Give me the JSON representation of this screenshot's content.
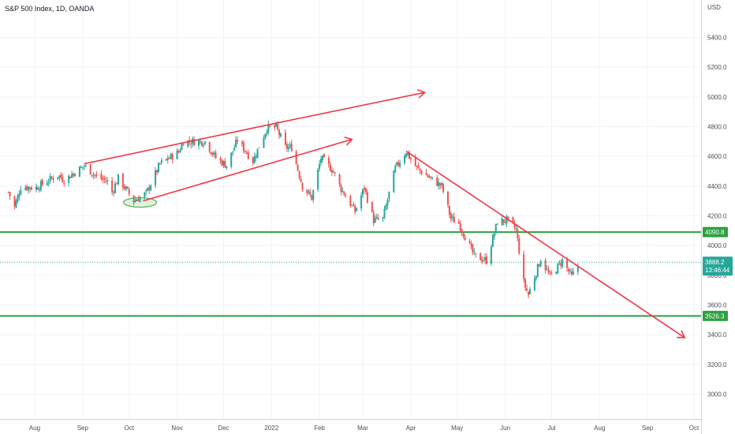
{
  "chart_data": {
    "type": "candlestick",
    "title": "S&P 500 Index, 1D, OANDA",
    "currency": "USD",
    "y_ticks": [
      3000,
      3200,
      3400,
      3600,
      3800,
      4000,
      4200,
      4400,
      4600,
      4800,
      5000,
      5200,
      5400
    ],
    "ylim": [
      2920,
      5600
    ],
    "x_ticks": [
      "Aug",
      "Sep",
      "Oct",
      "Nov",
      "Dec",
      "2022",
      "Feb",
      "Mar",
      "Apr",
      "May",
      "Jun",
      "Jul",
      "Aug",
      "Sep",
      "Oct"
    ],
    "grid": true,
    "up_color": "#26a69a",
    "down_color": "#ef5350",
    "price_path": [
      [
        "2021-07-15",
        4360
      ],
      [
        "2021-07-19",
        4260
      ],
      [
        "2021-07-23",
        4395
      ],
      [
        "2021-08-02",
        4390
      ],
      [
        "2021-08-16",
        4475
      ],
      [
        "2021-08-20",
        4440
      ],
      [
        "2021-09-02",
        4537
      ],
      [
        "2021-09-10",
        4465
      ],
      [
        "2021-09-17",
        4430
      ],
      [
        "2021-09-20",
        4360
      ],
      [
        "2021-09-24",
        4455
      ],
      [
        "2021-10-04",
        4300
      ],
      [
        "2021-10-12",
        4350
      ],
      [
        "2021-10-21",
        4550
      ],
      [
        "2021-11-02",
        4630
      ],
      [
        "2021-11-05",
        4700
      ],
      [
        "2021-11-19",
        4700
      ],
      [
        "2021-11-26",
        4590
      ],
      [
        "2021-11-30",
        4560
      ],
      [
        "2021-12-03",
        4540
      ],
      [
        "2021-12-10",
        4710
      ],
      [
        "2021-12-20",
        4570
      ],
      [
        "2021-12-29",
        4790
      ],
      [
        "2022-01-04",
        4795
      ],
      [
        "2022-01-10",
        4660
      ],
      [
        "2022-01-14",
        4660
      ],
      [
        "2022-01-21",
        4400
      ],
      [
        "2022-01-27",
        4320
      ],
      [
        "2022-02-02",
        4590
      ],
      [
        "2022-02-10",
        4500
      ],
      [
        "2022-02-14",
        4400
      ],
      [
        "2022-02-24",
        4230
      ],
      [
        "2022-03-02",
        4390
      ],
      [
        "2022-03-08",
        4170
      ],
      [
        "2022-03-14",
        4180
      ],
      [
        "2022-03-22",
        4520
      ],
      [
        "2022-03-29",
        4630
      ],
      [
        "2022-04-05",
        4520
      ],
      [
        "2022-04-14",
        4450
      ],
      [
        "2022-04-21",
        4400
      ],
      [
        "2022-04-27",
        4180
      ],
      [
        "2022-05-02",
        4150
      ],
      [
        "2022-05-12",
        3930
      ],
      [
        "2022-05-20",
        3900
      ],
      [
        "2022-05-27",
        4160
      ],
      [
        "2022-06-02",
        4170
      ],
      [
        "2022-06-08",
        4110
      ],
      [
        "2022-06-13",
        3750
      ],
      [
        "2022-06-16",
        3670
      ],
      [
        "2022-06-24",
        3910
      ],
      [
        "2022-06-30",
        3790
      ],
      [
        "2022-07-08",
        3900
      ],
      [
        "2022-07-14",
        3790
      ],
      [
        "2022-07-18",
        3863
      ]
    ],
    "highlight_ellipse_date": "2021-10-04",
    "horizontal_lines": [
      {
        "level": 4090.8,
        "label": "4090.8",
        "color": "#2ea043"
      },
      {
        "level": 3526.3,
        "label": "3526.3",
        "color": "#2ea043"
      }
    ],
    "trend_lines": [
      {
        "from": [
          "2021-09-02",
          4550
        ],
        "to": [
          "2021-12-31",
          4815
        ],
        "arrow": false,
        "color": "#f23645"
      },
      {
        "from": [
          "2021-12-31",
          4815
        ],
        "to": [
          "2022-04-10",
          5030
        ],
        "arrow": true,
        "color": "#f23645"
      },
      {
        "from": [
          "2021-10-10",
          4300
        ],
        "to": [
          "2022-02-22",
          4715
        ],
        "arrow": true,
        "color": "#f23645"
      },
      {
        "from": [
          "2022-03-29",
          4635
        ],
        "to": [
          "2022-09-25",
          3380
        ],
        "arrow": true,
        "color": "#f23645"
      }
    ],
    "last_price": {
      "value": 3888.2,
      "label": "3888.2",
      "countdown": "13:46:44",
      "color": "#26a69a"
    }
  }
}
